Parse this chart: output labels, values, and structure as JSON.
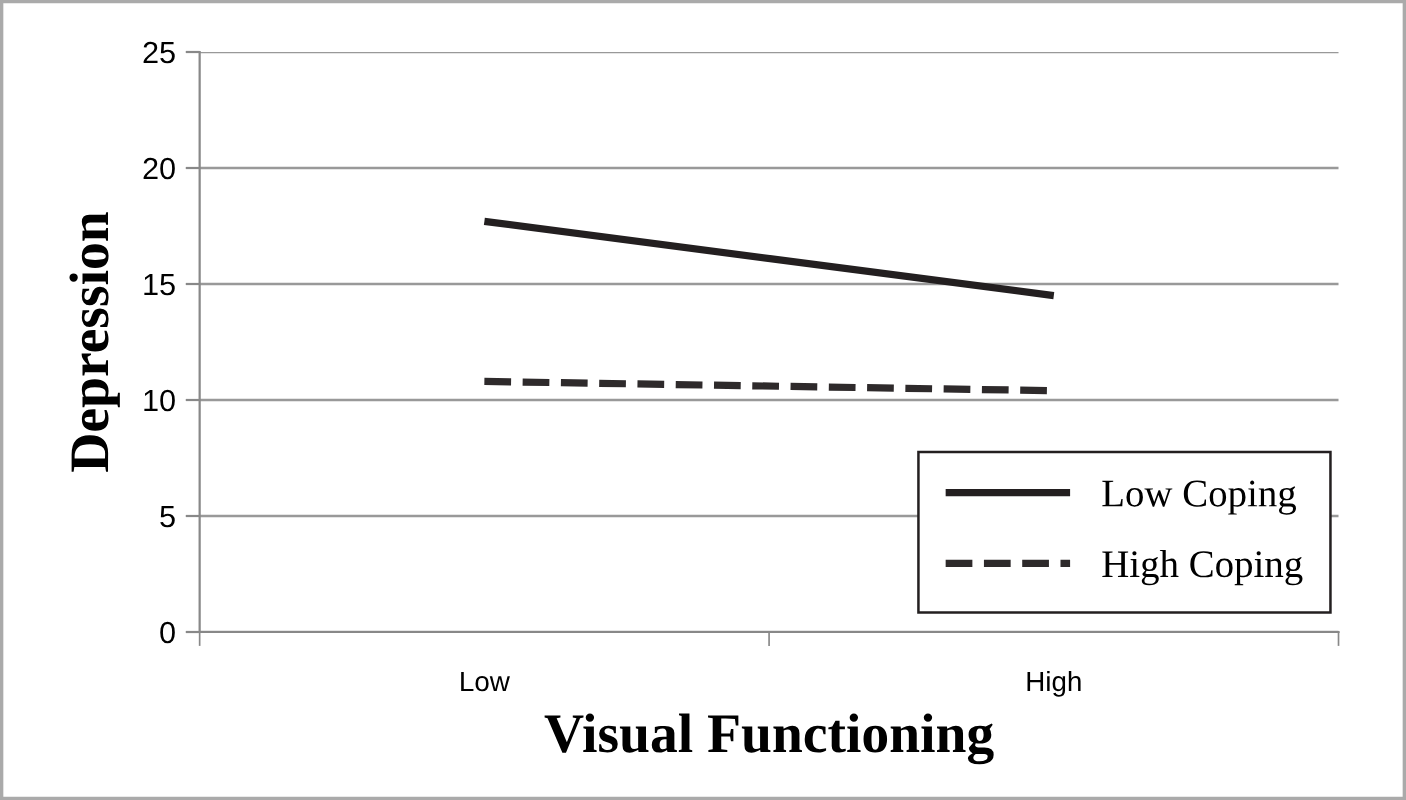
{
  "chart_data": {
    "type": "line",
    "xlabel": "Visual Functioning",
    "ylabel": "Depression",
    "categories": [
      "Low",
      "High"
    ],
    "series": [
      {
        "name": "Low Coping",
        "color": "#231f20",
        "values": [
          17.7,
          14.5
        ],
        "line_style": "solid"
      },
      {
        "name": "High Coping",
        "color": "#2e2a2b",
        "values": [
          10.8,
          10.4
        ],
        "line_style": "dashed"
      }
    ],
    "ylim": [
      0,
      25
    ],
    "yticks": [
      0,
      5,
      10,
      15,
      20,
      25
    ],
    "grid": "y",
    "legend": "bottom right",
    "marker": "none"
  }
}
